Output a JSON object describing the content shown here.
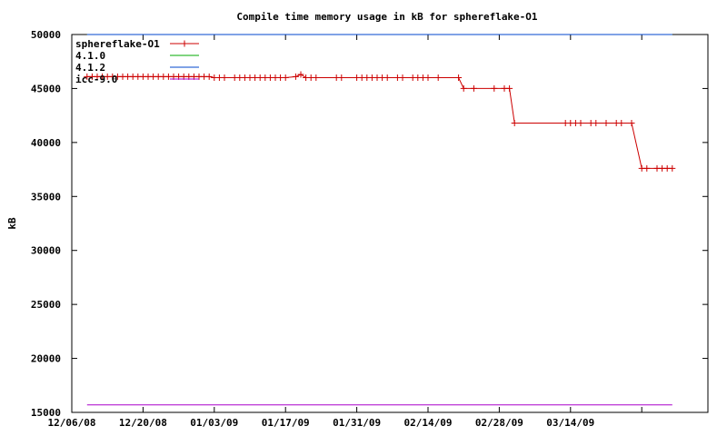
{
  "chart_data": {
    "type": "line",
    "title": "Compile time memory usage in kB for sphereflake-O1",
    "xlabel": "",
    "ylabel": "kB",
    "ylim": [
      15000,
      50000
    ],
    "yticks": [
      15000,
      20000,
      25000,
      30000,
      35000,
      40000,
      45000,
      50000
    ],
    "xlim": [
      "2008-12-06",
      "2009-04-10"
    ],
    "xticks": [
      "12/06/08",
      "12/20/08",
      "01/03/09",
      "01/17/09",
      "01/31/09",
      "02/14/09",
      "02/28/09",
      "03/14/09"
    ],
    "legend_position": "top-left",
    "grid": false,
    "series": [
      {
        "name": "sphereflake-O1",
        "color": "#cc0000",
        "marker": "plus",
        "x": [
          "2008-12-09",
          "2008-12-10",
          "2008-12-11",
          "2008-12-12",
          "2008-12-13",
          "2008-12-14",
          "2008-12-15",
          "2008-12-16",
          "2008-12-17",
          "2008-12-18",
          "2008-12-19",
          "2008-12-20",
          "2008-12-21",
          "2008-12-22",
          "2008-12-23",
          "2008-12-24",
          "2008-12-25",
          "2008-12-26",
          "2008-12-27",
          "2008-12-28",
          "2008-12-29",
          "2008-12-30",
          "2008-12-31",
          "2009-01-01",
          "2009-01-02",
          "2009-01-03",
          "2009-01-04",
          "2009-01-05",
          "2009-01-07",
          "2009-01-08",
          "2009-01-09",
          "2009-01-10",
          "2009-01-11",
          "2009-01-12",
          "2009-01-13",
          "2009-01-14",
          "2009-01-15",
          "2009-01-16",
          "2009-01-17",
          "2009-01-19",
          "2009-01-20",
          "2009-01-21",
          "2009-01-22",
          "2009-01-23",
          "2009-01-27",
          "2009-01-28",
          "2009-01-31",
          "2009-02-01",
          "2009-02-02",
          "2009-02-03",
          "2009-02-04",
          "2009-02-05",
          "2009-02-06",
          "2009-02-08",
          "2009-02-09",
          "2009-02-11",
          "2009-02-12",
          "2009-02-13",
          "2009-02-14",
          "2009-02-16",
          "2009-02-20",
          "2009-02-21",
          "2009-02-23",
          "2009-02-27",
          "2009-03-01",
          "2009-03-02",
          "2009-03-03",
          "2009-03-13",
          "2009-03-14",
          "2009-03-15",
          "2009-03-16",
          "2009-03-18",
          "2009-03-19",
          "2009-03-21",
          "2009-03-23",
          "2009-03-24",
          "2009-03-26",
          "2009-03-28",
          "2009-03-29",
          "2009-03-31",
          "2009-04-01",
          "2009-04-02",
          "2009-04-03"
        ],
        "y": [
          46100,
          46100,
          46100,
          46100,
          46100,
          46100,
          46100,
          46100,
          46100,
          46100,
          46100,
          46100,
          46100,
          46100,
          46100,
          46100,
          46100,
          46100,
          46100,
          46100,
          46100,
          46100,
          46100,
          46100,
          46100,
          46000,
          46000,
          46000,
          46000,
          46000,
          46000,
          46000,
          46000,
          46000,
          46000,
          46000,
          46000,
          46000,
          46000,
          46100,
          46300,
          46000,
          46000,
          46000,
          46000,
          46000,
          46000,
          46000,
          46000,
          46000,
          46000,
          46000,
          46000,
          46000,
          46000,
          46000,
          46000,
          46000,
          46000,
          46000,
          46000,
          45000,
          45000,
          45000,
          45000,
          45000,
          41800,
          41800,
          41800,
          41800,
          41800,
          41800,
          41800,
          41800,
          41800,
          41800,
          41800,
          37600,
          37600,
          37600,
          37600,
          37600,
          37600
        ]
      },
      {
        "name": "4.1.0",
        "color": "#00aa00",
        "x": [
          "2008-12-09",
          "2009-04-03"
        ],
        "y": [
          50000,
          50000
        ]
      },
      {
        "name": "4.1.2",
        "color": "#0044cc",
        "x": [
          "2008-12-09",
          "2009-04-03"
        ],
        "y": [
          50000,
          50000
        ]
      },
      {
        "name": "icc-9.0",
        "color": "#aa00cc",
        "x": [
          "2008-12-09",
          "2009-04-03"
        ],
        "y": [
          15700,
          15700
        ]
      }
    ]
  }
}
